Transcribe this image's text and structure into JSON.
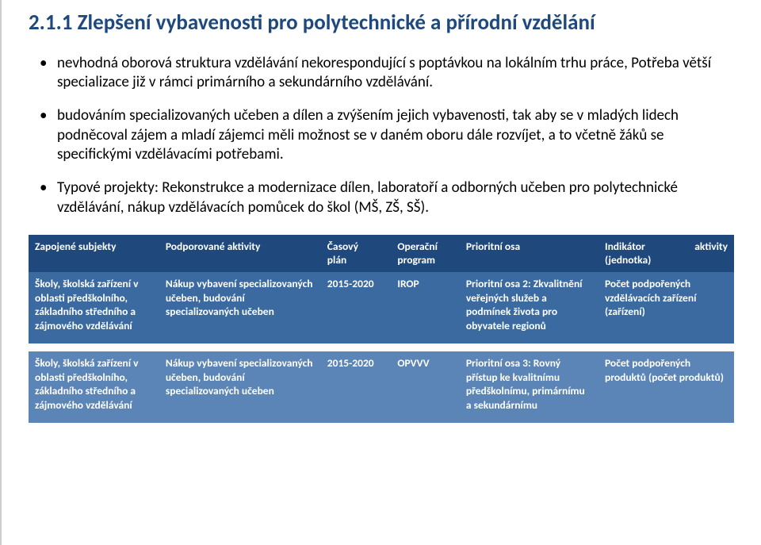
{
  "title": "2.1.1 Zlepšení vybavenosti pro polytechnické a přírodní vzdělání",
  "bullets": {
    "b1": "nevhodná oborová struktura vzdělávání nekorespondující s poptávkou na lokálním trhu práce, Potřeba větší specializace již v rámci primárního a sekundárního vzdělávání.",
    "b2": "budováním specializovaných učeben a dílen a zvýšením jejich vybavenosti, tak aby se v mladých lidech podněcoval zájem a mladí zájemci měli možnost se v daném oboru dále rozvíjet, a to včetně žáků se specifickými vzdělávacími potřebami.",
    "b3_lead": "Typové projekty: ",
    "b3_rest": "Rekonstrukce a modernizace dílen, laboratoří a odborných učeben pro polytechnické vzdělávání, nákup vzdělávacích pomůcek do škol (MŠ, ZŠ, SŠ)."
  },
  "table": {
    "head": {
      "subjects": "Zapojené subjekty",
      "activities": "Podporované aktivity",
      "time_l1": "Časový",
      "time_l2": "plán",
      "program_l1": "Operační",
      "program_l2": "program",
      "axis": "Prioritní osa",
      "indicator_l1": "Indikátor",
      "indicator_l2": "aktivity",
      "indicator_l3": "(jednotka)"
    },
    "row1": {
      "subjects": "Školy, školská zařízení v oblasti předškolního, základního středního a zájmového vzdělávání",
      "activities": "Nákup vybavení specializovaných učeben, budování specializovaných učeben",
      "time": "2015-2020",
      "program": "IROP",
      "axis": "Prioritní osa 2: Zkvalitnění veřejných služeb a podmínek života pro obyvatele regionů",
      "indicator": "Počet podpořených vzdělávacích zařízení (zařízení)"
    },
    "row2": {
      "subjects": "Školy, školská zařízení v oblasti předškolního, základního středního a zájmového vzdělávání",
      "activities": "Nákup vybavení specializovaných učeben, budování specializovaných učeben",
      "time": "2015-2020",
      "program": "OPVVV",
      "axis": "Prioritní osa 3: Rovný přístup ke kvalitnímu předškolnímu, primárnímu a sekundárnímu",
      "indicator": "Počet podpořených produktů (počet produktů)"
    }
  },
  "colors": {
    "title": "#1f497d",
    "thead_bg": "#1f497d",
    "row1_bg": "#3b6aa0",
    "row2_bg": "#5b85b7",
    "text_white": "#ffffff"
  }
}
